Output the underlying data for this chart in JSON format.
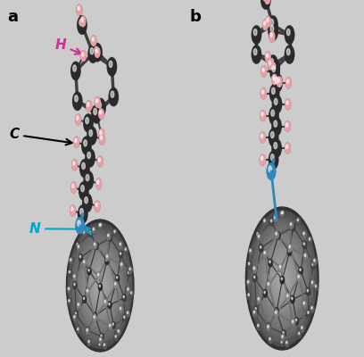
{
  "figsize": [
    4.08,
    4.0
  ],
  "dpi": 100,
  "bg_color": "#cccccc",
  "panel_a_label": "a",
  "panel_b_label": "b",
  "label_fontsize": 13,
  "label_fontweight": "bold",
  "label_color": "black",
  "annotation_H_text": "H",
  "annotation_H_color": "#d03090",
  "annotation_C_text": "C",
  "annotation_C_color": "black",
  "annotation_N_text": "N",
  "annotation_N_color": "#00a8c8",
  "annotation_fontsize": 9,
  "carbon_color": "#2a2a2a",
  "hydrogen_color": "#e8a0a8",
  "nitrogen_color": "#3388bb",
  "fullerene_dark": "#303030",
  "fullerene_mid": "#606060",
  "fullerene_bond": "#505050"
}
